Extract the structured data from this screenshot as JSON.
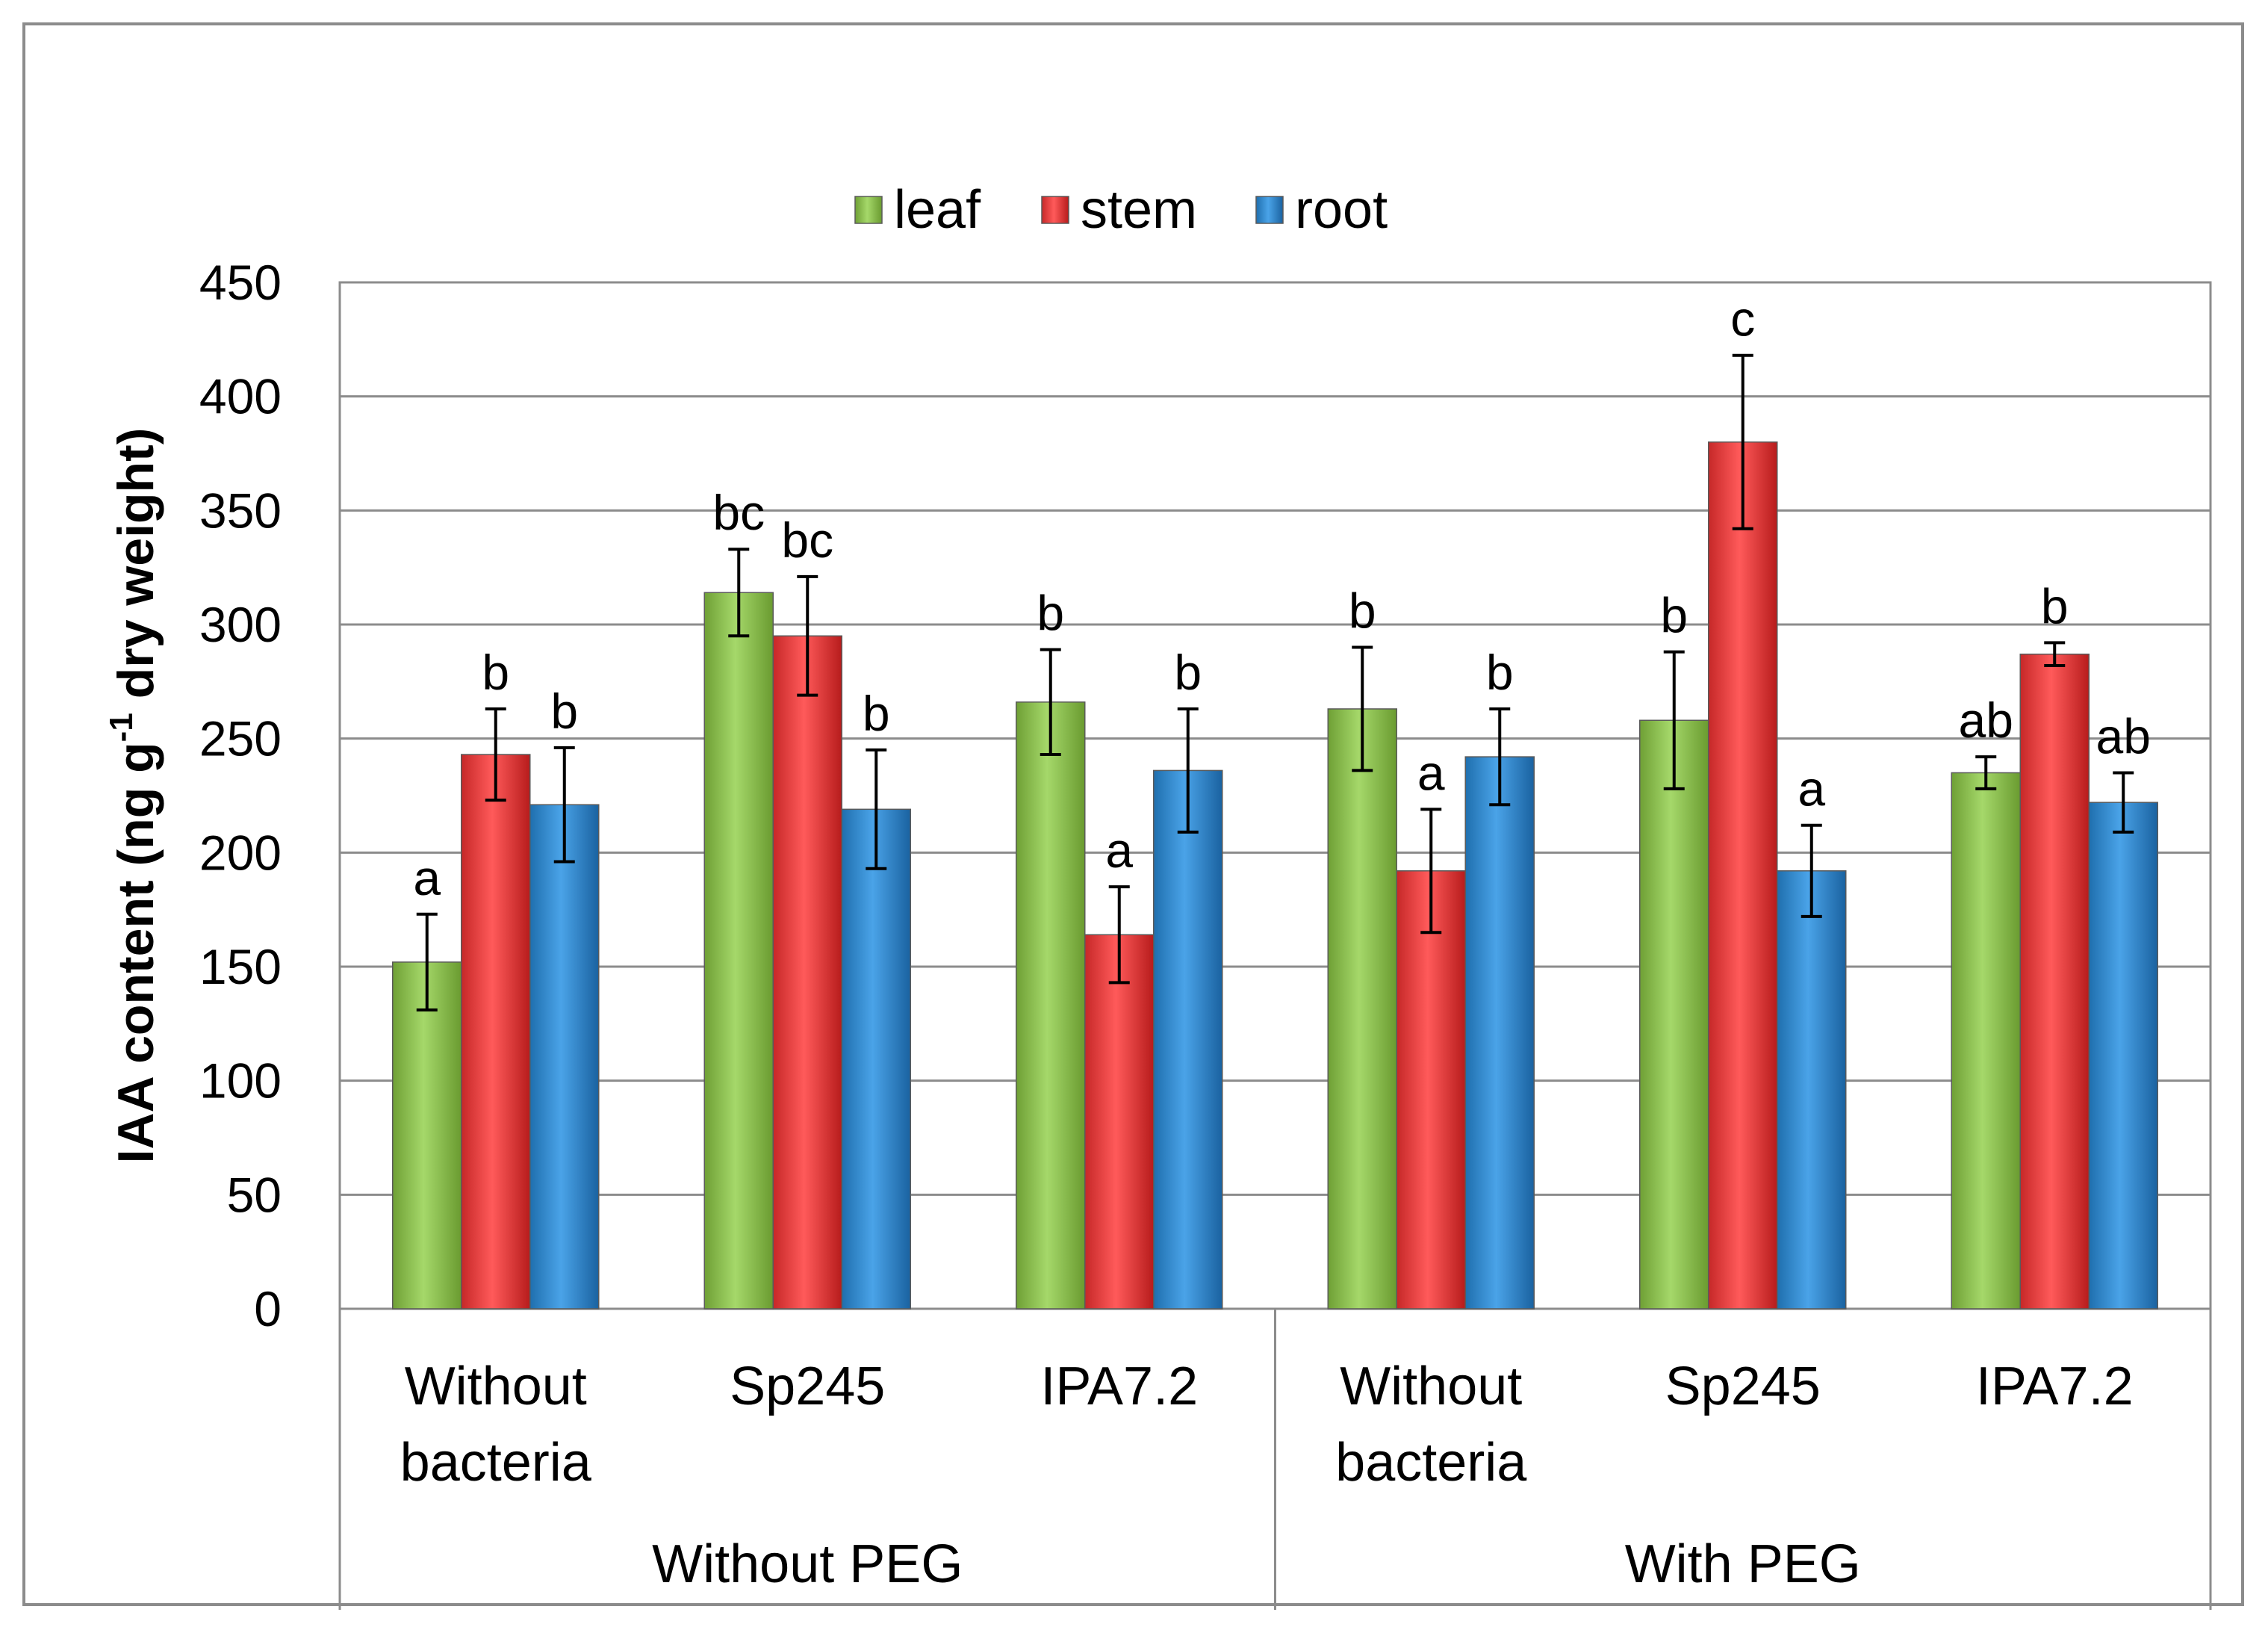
{
  "chart_data": {
    "type": "bar",
    "title": "",
    "xlabel": "",
    "ylabel": "IAA content  (ng g-1  dry  weight)",
    "ylabel_parts": {
      "main": "IAA content  (ng g",
      "sup": "-1",
      "rest": "  dry  weight)"
    },
    "ylim": [
      0,
      450
    ],
    "yticks": [
      0,
      50,
      100,
      150,
      200,
      250,
      300,
      350,
      400,
      450
    ],
    "grid": true,
    "legend_position": "top-center",
    "categories": [
      {
        "lines": [
          "Without",
          "bacteria"
        ],
        "group": "Without PEG"
      },
      {
        "lines": [
          "Sp245"
        ],
        "group": "Without PEG"
      },
      {
        "lines": [
          "IPA7.2"
        ],
        "group": "Without PEG"
      },
      {
        "lines": [
          "Without",
          "bacteria"
        ],
        "group": "With PEG"
      },
      {
        "lines": [
          "Sp245"
        ],
        "group": "With PEG"
      },
      {
        "lines": [
          "IPA7.2"
        ],
        "group": "With PEG"
      }
    ],
    "groups": [
      "Without PEG",
      "With PEG"
    ],
    "series": [
      {
        "name": "leaf",
        "color": "#8bc34a",
        "values": [
          152,
          314,
          266,
          263,
          258,
          235
        ],
        "errors": [
          21,
          19,
          23,
          27,
          30,
          7
        ],
        "letters": [
          "a",
          "bc",
          "b",
          "b",
          "b",
          "ab"
        ]
      },
      {
        "name": "stem",
        "color": "#e53935",
        "values": [
          243,
          295,
          164,
          192,
          380,
          287
        ],
        "errors": [
          20,
          26,
          21,
          27,
          38,
          5
        ],
        "letters": [
          "b",
          "bc",
          "a",
          "a",
          "c",
          "b"
        ]
      },
      {
        "name": "root",
        "color": "#2e8bd0",
        "values": [
          221,
          219,
          236,
          242,
          192,
          222
        ],
        "errors": [
          25,
          26,
          27,
          21,
          20,
          13
        ],
        "letters": [
          "b",
          "b",
          "b",
          "b",
          "a",
          "ab"
        ]
      }
    ]
  }
}
